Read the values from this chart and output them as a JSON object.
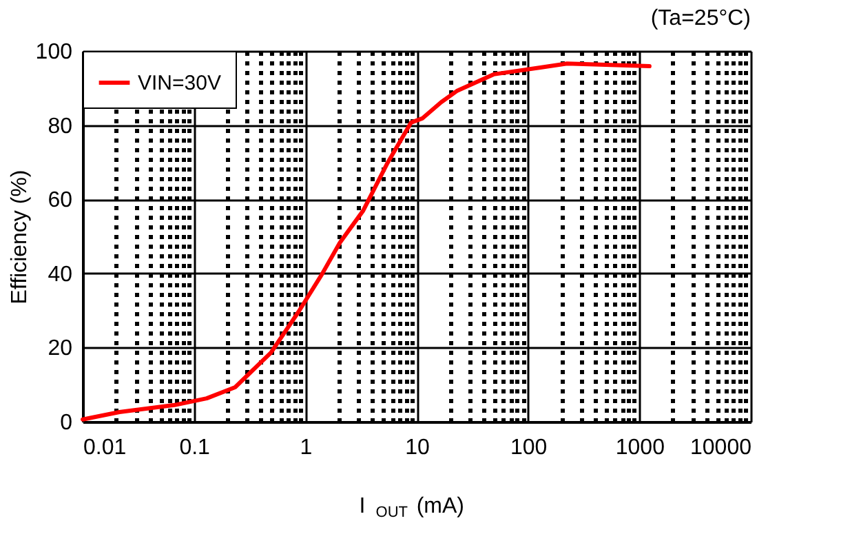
{
  "chart_data": {
    "type": "line",
    "xlabel": "I$_{OUT}$ (mA)",
    "ylabel": "Efficiency (%)",
    "annotations": [
      "(Ta=25°C)"
    ],
    "log": "x",
    "xlim": [
      0.01,
      10000
    ],
    "xticks": [
      0.01,
      0.1,
      1,
      10,
      100,
      1000,
      10000
    ],
    "ylim": [
      0,
      100
    ],
    "yticks": [
      0,
      20,
      40,
      60,
      80,
      100
    ],
    "grid": true,
    "legend": "top left",
    "line_style": "solid",
    "marker": "none",
    "x": [
      0.01,
      0.0214,
      0.067,
      0.13,
      0.234,
      0.49,
      0.87,
      1.41,
      2.04,
      3.3,
      5.4,
      8.9,
      11.2,
      16.6,
      22.9,
      49,
      126,
      224,
      1230
    ],
    "series": [
      {
        "name": "VIN=30V",
        "color": "#ff0000",
        "values": [
          0.6,
          2.6,
          4.5,
          6.3,
          9.3,
          18.6,
          29.7,
          39.8,
          48.3,
          56.9,
          69.5,
          80.7,
          81.8,
          86.2,
          89.2,
          93.7,
          95.5,
          96.6,
          95.9
        ]
      }
    ]
  }
}
